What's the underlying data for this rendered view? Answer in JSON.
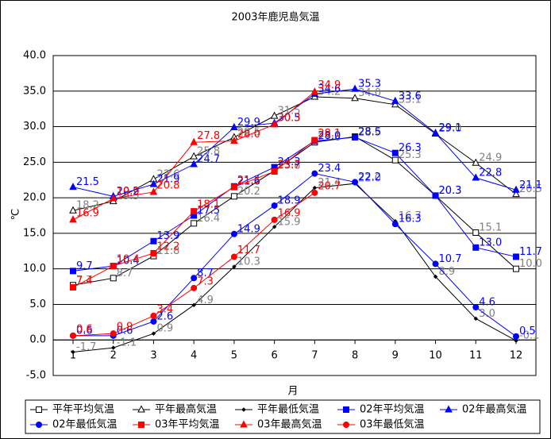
{
  "chart_data": {
    "type": "line",
    "title": "2003年鹿児島気温",
    "xlabel": "月",
    "ylabel": "℃",
    "categories": [
      "1",
      "2",
      "3",
      "4",
      "5",
      "6",
      "7",
      "8",
      "9",
      "10",
      "11",
      "12"
    ],
    "ylim": [
      -5,
      40
    ],
    "yticks": [
      {
        "value": -5,
        "label": "-5.0"
      },
      {
        "value": 0,
        "label": "0.0"
      },
      {
        "value": 5,
        "label": "5.0"
      },
      {
        "value": 10,
        "label": "10.0"
      },
      {
        "value": 15,
        "label": "15.0"
      },
      {
        "value": 20,
        "label": "20.0"
      },
      {
        "value": 25,
        "label": "25.0"
      },
      {
        "value": 30,
        "label": "30.0"
      },
      {
        "value": 35,
        "label": "35.0"
      },
      {
        "value": 40,
        "label": "40.0"
      }
    ],
    "grid": true,
    "series": [
      {
        "name": "平年平均気温",
        "color": "#000000",
        "marker": "square",
        "fill": "#ffffff",
        "label_color": "#808080",
        "values": [
          7.7,
          8.7,
          11.8,
          16.4,
          20.2,
          23.8,
          27.8,
          28.6,
          25.3,
          20.3,
          15.1,
          10.0
        ],
        "value_labels": [
          "7.7",
          "8.7",
          "11.8",
          "16.4",
          "20.2",
          "23.8",
          "27.8",
          "28.6",
          "25.3",
          "20.3",
          "15.1",
          "10.0"
        ]
      },
      {
        "name": "平年最高気温",
        "color": "#000000",
        "marker": "triangle",
        "fill": "#ffffff",
        "label_color": "#808080",
        "values": [
          18.2,
          19.5,
          22.6,
          25.8,
          28.5,
          31.5,
          34.2,
          34.0,
          33.1,
          29.0,
          24.9,
          20.5
        ],
        "value_labels": [
          "18.2",
          "19.5",
          "22.6",
          "25.8",
          "28.5",
          "31.5",
          "34.2",
          "34.0",
          "33.1",
          "29.0",
          "24.9",
          "20.5"
        ]
      },
      {
        "name": "平年最低気温",
        "color": "#000000",
        "marker": "diamond",
        "fill": "#000000",
        "label_color": "#808080",
        "values": [
          -1.7,
          -1.1,
          0.9,
          4.9,
          10.3,
          15.9,
          21.4,
          22.0,
          16.7,
          8.9,
          3.0,
          -0.1
        ],
        "value_labels": [
          "-1.7",
          "-1.1",
          "0.9",
          "4.9",
          "10.3",
          "15.9",
          "21.4",
          "22.0",
          "16.7",
          "8.9",
          "3.0",
          "-0.1"
        ]
      },
      {
        "name": "02年平均気温",
        "color": "#0000ff",
        "marker": "square",
        "fill": "#0000ff",
        "label_color": "#0000ff",
        "values": [
          9.7,
          10.4,
          13.9,
          17.5,
          21.6,
          24.3,
          28.0,
          28.5,
          26.3,
          20.3,
          13.0,
          11.7
        ],
        "value_labels": [
          "9.7",
          "10.4",
          "13.9",
          "17.5",
          "21.6",
          "24.3",
          "28.0",
          "28.5",
          "26.3",
          "20.3",
          "13.0",
          "11.7"
        ]
      },
      {
        "name": "02年最高気温",
        "color": "#0000ff",
        "marker": "triangle",
        "fill": "#0000ff",
        "label_color": "#0000ff",
        "values": [
          21.5,
          20.2,
          21.9,
          24.7,
          29.9,
          30.5,
          34.6,
          35.3,
          33.6,
          29.1,
          22.8,
          21.1
        ],
        "value_labels": [
          "21.5",
          "20.2",
          "21.9",
          "24.7",
          "29.9",
          "30.5",
          "34.6",
          "35.3",
          "33.6",
          "29.1",
          "22.8",
          "21.1"
        ]
      },
      {
        "name": "02年最低気温",
        "color": "#0000ff",
        "marker": "circle",
        "fill": "#0000ff",
        "label_color": "#0000ff",
        "values": [
          0.6,
          0.6,
          2.6,
          8.7,
          14.9,
          18.9,
          23.4,
          22.2,
          16.3,
          10.7,
          4.6,
          0.5
        ],
        "value_labels": [
          "0.6",
          "0.6",
          "2.6",
          "8.7",
          "14.9",
          "18.9",
          "23.4",
          "22.2",
          "16.3",
          "10.7",
          "4.6",
          "0.5"
        ]
      },
      {
        "name": "03年平均気温",
        "color": "#ff0000",
        "marker": "square",
        "fill": "#ff0000",
        "label_color": "#ff0000",
        "values": [
          7.4,
          10.4,
          12.2,
          18.1,
          21.5,
          23.7,
          28.1,
          null,
          null,
          null,
          null,
          null
        ],
        "value_labels": [
          "7.4",
          "10.4",
          "12.2",
          "18.1",
          "21.5",
          "23.7",
          "28.1",
          null,
          null,
          null,
          null,
          null
        ]
      },
      {
        "name": "03年最高気温",
        "color": "#ff0000",
        "marker": "triangle",
        "fill": "#ff0000",
        "label_color": "#ff0000",
        "values": [
          16.9,
          19.9,
          20.8,
          27.8,
          28.0,
          30.3,
          34.9,
          null,
          null,
          null,
          null,
          null
        ],
        "value_labels": [
          "16.9",
          "19.9",
          "20.8",
          "27.8",
          "28.0",
          "30.3",
          "34.9",
          null,
          null,
          null,
          null,
          null
        ]
      },
      {
        "name": "03年最低気温",
        "color": "#ff0000",
        "marker": "circle",
        "fill": "#ff0000",
        "label_color": "#ff0000",
        "values": [
          0.6,
          0.9,
          3.4,
          7.3,
          11.7,
          16.9,
          20.7,
          null,
          null,
          null,
          null,
          null
        ],
        "value_labels": [
          "0.6",
          "0.9",
          "3.4",
          "7.3",
          "11.7",
          "16.9",
          "20.7",
          null,
          null,
          null,
          null,
          null
        ]
      }
    ]
  }
}
